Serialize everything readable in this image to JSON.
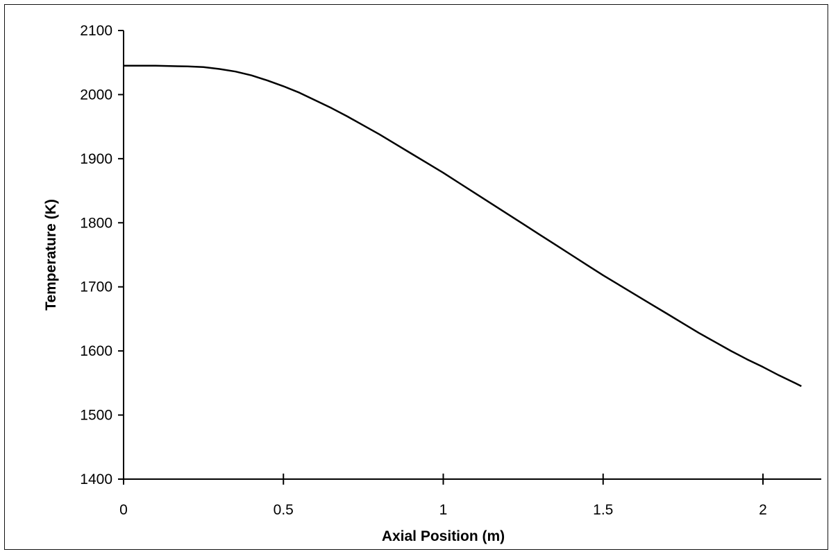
{
  "chart_data": {
    "type": "line",
    "title": "",
    "xlabel": "Axial Position (m)",
    "ylabel": "Temperature (K)",
    "xlim": [
      0,
      2.1
    ],
    "ylim": [
      1400,
      2100
    ],
    "x_ticks": [
      "0",
      "0.5",
      "1",
      "1.5",
      "2"
    ],
    "y_ticks": [
      "1400",
      "1500",
      "1600",
      "1700",
      "1800",
      "1900",
      "2000",
      "2100"
    ],
    "grid": false,
    "legend": "none",
    "series": [
      {
        "color": "#000000",
        "x": [
          0,
          0.1,
          0.2,
          0.25,
          0.3,
          0.35,
          0.4,
          0.45,
          0.5,
          0.55,
          0.6,
          0.65,
          0.7,
          0.75,
          0.8,
          0.85,
          0.9,
          0.95,
          1.0,
          1.05,
          1.1,
          1.15,
          1.2,
          1.25,
          1.3,
          1.35,
          1.4,
          1.45,
          1.5,
          1.55,
          1.6,
          1.65,
          1.7,
          1.75,
          1.8,
          1.85,
          1.9,
          1.95,
          2.0,
          2.05,
          2.1,
          2.12
        ],
        "y": [
          2045,
          2045,
          2044,
          2043,
          2040,
          2036,
          2030,
          2022,
          2013,
          2003,
          1991,
          1979,
          1966,
          1952,
          1938,
          1923,
          1908,
          1893,
          1878,
          1862,
          1846,
          1830,
          1814,
          1798,
          1782,
          1766,
          1750,
          1734,
          1718,
          1703,
          1688,
          1673,
          1658,
          1643,
          1628,
          1614,
          1600,
          1587,
          1575,
          1562,
          1550,
          1545
        ]
      }
    ]
  }
}
